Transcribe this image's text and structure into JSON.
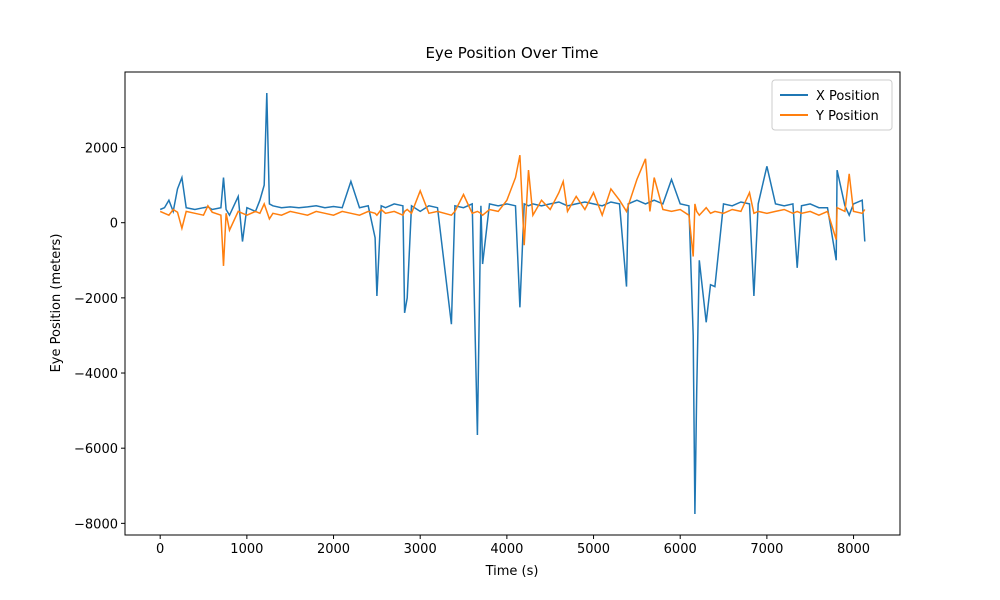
{
  "chart_data": {
    "type": "line",
    "title": "Eye Position Over Time",
    "xlabel": "Time (s)",
    "ylabel": "Eye Position (meters)",
    "x": [
      0,
      50,
      100,
      150,
      200,
      250,
      300,
      400,
      500,
      550,
      600,
      700,
      730,
      760,
      800,
      900,
      950,
      1000,
      1100,
      1150,
      1200,
      1230,
      1260,
      1300,
      1400,
      1500,
      1600,
      1700,
      1800,
      1900,
      2000,
      2100,
      2200,
      2300,
      2400,
      2480,
      2500,
      2550,
      2600,
      2700,
      2800,
      2820,
      2850,
      2900,
      3000,
      3100,
      3200,
      3360,
      3400,
      3500,
      3600,
      3660,
      3700,
      3720,
      3800,
      3900,
      4000,
      4100,
      4150,
      4200,
      4250,
      4300,
      4400,
      4500,
      4600,
      4650,
      4700,
      4800,
      4900,
      5000,
      5100,
      5200,
      5300,
      5380,
      5400,
      5500,
      5600,
      5650,
      5700,
      5800,
      5900,
      6000,
      6100,
      6150,
      6170,
      6190,
      6220,
      6300,
      6350,
      6400,
      6500,
      6600,
      6700,
      6800,
      6850,
      6900,
      7000,
      7100,
      7200,
      7300,
      7350,
      7400,
      7500,
      7550,
      7600,
      7700,
      7800,
      7810,
      7900,
      7950,
      8000,
      8100,
      8130
    ],
    "series": [
      {
        "name": "X Position",
        "color": "#1f77b4",
        "values": [
          350,
          400,
          600,
          300,
          900,
          1200,
          400,
          350,
          400,
          420,
          350,
          400,
          1200,
          350,
          200,
          700,
          -500,
          400,
          300,
          600,
          1000,
          3450,
          500,
          450,
          400,
          420,
          400,
          420,
          450,
          400,
          430,
          400,
          1100,
          400,
          450,
          -400,
          -1950,
          450,
          400,
          500,
          450,
          -2400,
          -2000,
          450,
          300,
          450,
          400,
          -2700,
          450,
          400,
          500,
          -5650,
          450,
          -1100,
          500,
          450,
          500,
          450,
          -2250,
          500,
          450,
          500,
          450,
          500,
          550,
          500,
          450,
          500,
          550,
          500,
          450,
          550,
          500,
          -1700,
          500,
          600,
          500,
          550,
          600,
          500,
          1150,
          500,
          450,
          -3000,
          -7750,
          -4500,
          -1000,
          -2650,
          -1650,
          -1700,
          500,
          450,
          550,
          500,
          -1950,
          500,
          1500,
          500,
          450,
          500,
          -1200,
          450,
          500,
          450,
          400,
          400,
          -1000,
          1400,
          450,
          200,
          500,
          600,
          -500
        ]
      },
      {
        "name": "Y Position",
        "color": "#ff7f0e",
        "values": [
          300,
          250,
          200,
          350,
          280,
          -150,
          300,
          250,
          200,
          450,
          280,
          200,
          -1150,
          250,
          -200,
          300,
          250,
          200,
          300,
          250,
          500,
          300,
          100,
          250,
          200,
          300,
          250,
          200,
          300,
          250,
          200,
          300,
          250,
          200,
          300,
          250,
          200,
          350,
          250,
          300,
          200,
          300,
          350,
          250,
          850,
          250,
          300,
          200,
          300,
          750,
          250,
          300,
          250,
          200,
          350,
          300,
          600,
          1200,
          1800,
          -600,
          1400,
          200,
          600,
          350,
          800,
          1100,
          300,
          700,
          350,
          800,
          200,
          900,
          600,
          300,
          450,
          1150,
          1700,
          300,
          1200,
          350,
          300,
          350,
          200,
          -900,
          500,
          300,
          200,
          400,
          250,
          300,
          250,
          350,
          300,
          800,
          250,
          300,
          250,
          300,
          350,
          250,
          300,
          250,
          300,
          250,
          200,
          300,
          -450,
          400,
          300,
          1300,
          300,
          250,
          350
        ]
      }
    ],
    "xlim": [
      -406,
      8536
    ],
    "ylim": [
      -8310,
      4010
    ],
    "xticks": [
      0,
      1000,
      2000,
      3000,
      4000,
      5000,
      6000,
      7000,
      8000
    ],
    "yticks": [
      {
        "value": -8000,
        "label": "−8000"
      },
      {
        "value": -6000,
        "label": "−6000"
      },
      {
        "value": -4000,
        "label": "−4000"
      },
      {
        "value": -2000,
        "label": "−2000"
      },
      0,
      2000
    ],
    "legend": "upper right"
  }
}
